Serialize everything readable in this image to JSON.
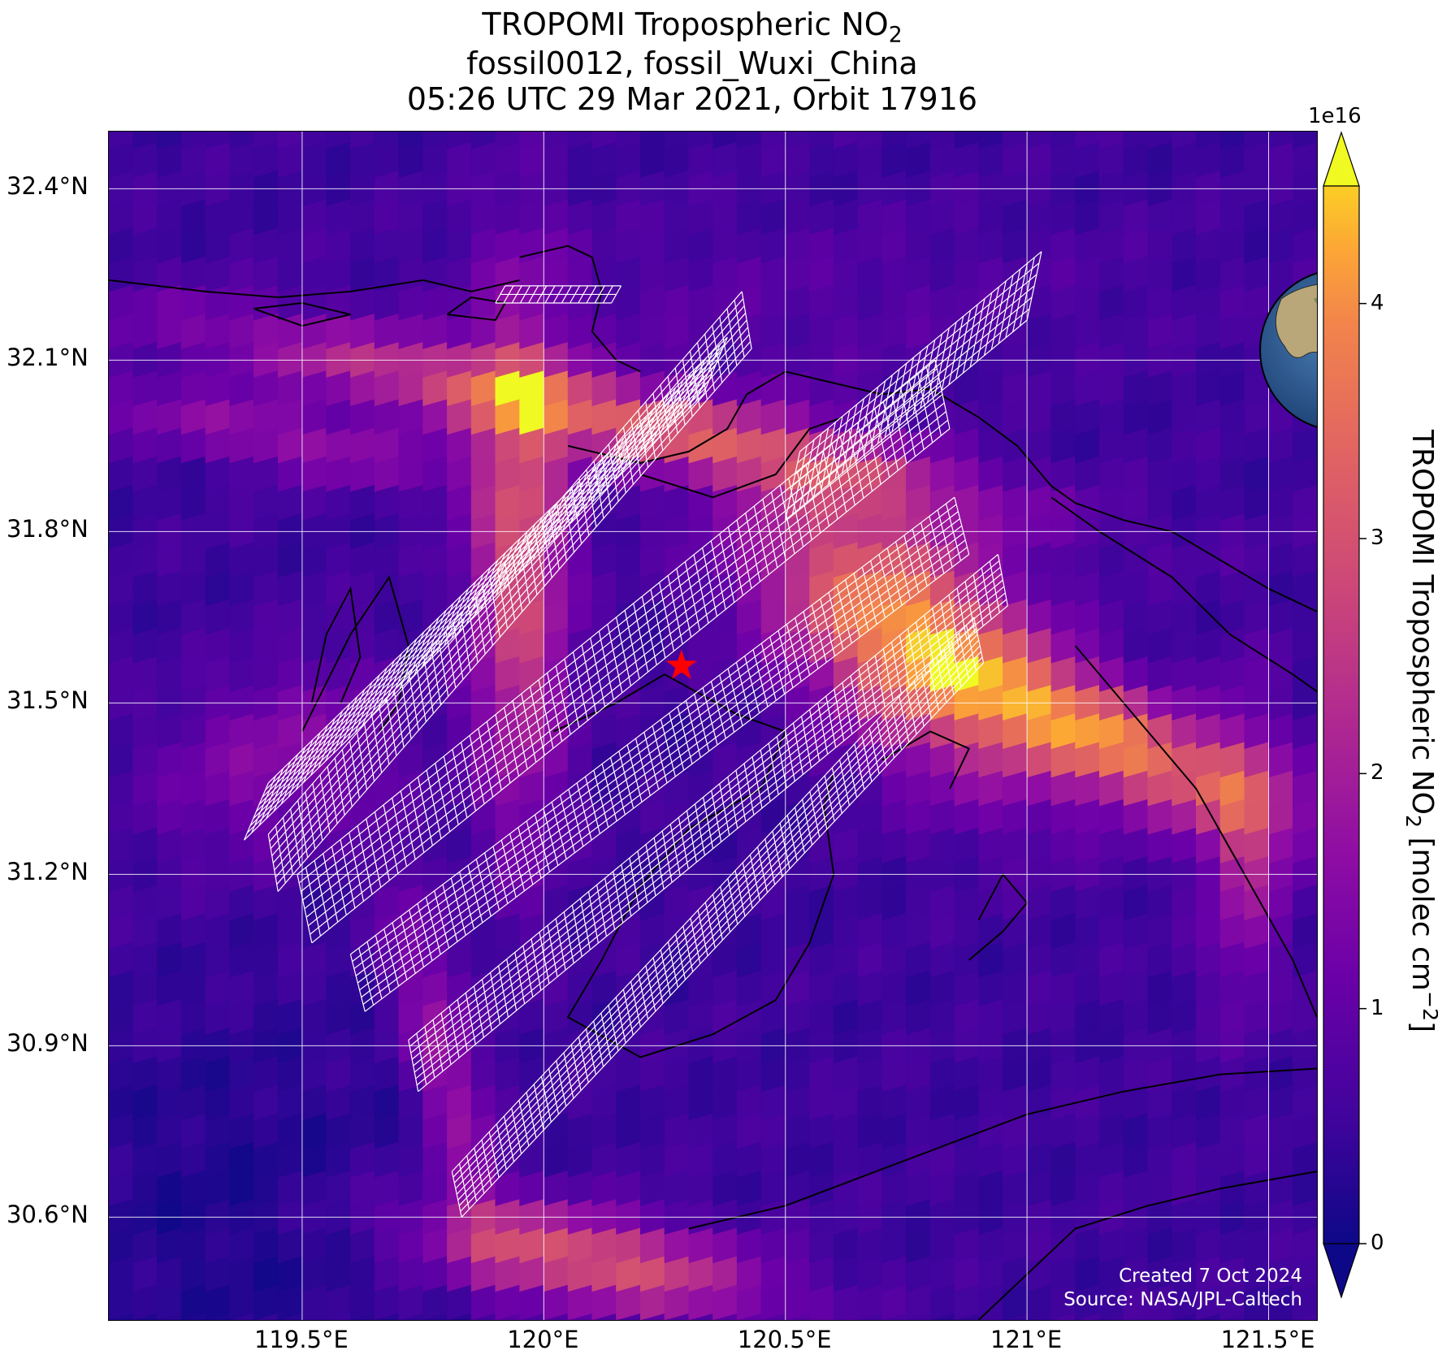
{
  "title": {
    "line1_prefix": "TROPOMI Tropospheric NO",
    "line1_sub": "2",
    "line2": "fossil0012, fossil_Wuxi_China",
    "line3": "05:26 UTC 29 Mar 2021, Orbit 17916"
  },
  "map": {
    "lon_range": [
      119.1,
      121.6
    ],
    "lat_range": [
      30.42,
      32.5
    ],
    "target_marker": {
      "lon": 120.285,
      "lat": 31.565,
      "symbol": "red-star"
    },
    "lat_ticks": [
      {
        "value": 32.4,
        "label": "32.4°N"
      },
      {
        "value": 32.1,
        "label": "32.1°N"
      },
      {
        "value": 31.8,
        "label": "31.8°N"
      },
      {
        "value": 31.5,
        "label": "31.5°N"
      },
      {
        "value": 31.2,
        "label": "31.2°N"
      },
      {
        "value": 30.9,
        "label": "30.9°N"
      },
      {
        "value": 30.6,
        "label": "30.6°N"
      }
    ],
    "lon_ticks": [
      {
        "value": 119.5,
        "label": "119.5°E"
      },
      {
        "value": 120.0,
        "label": "120°E"
      },
      {
        "value": 120.5,
        "label": "120.5°E"
      },
      {
        "value": 121.0,
        "label": "121°E"
      },
      {
        "value": 121.5,
        "label": "121.5°E"
      }
    ],
    "gridlines": true,
    "overlay": "OCO-3 target-mode sounding footprints (white outlines)",
    "inset": "orthographic globe centered on East Asia with red star at target"
  },
  "colorbar": {
    "colormap": "plasma",
    "min": 0,
    "max": 4.5,
    "extend": "both",
    "exponent_label": "1e16",
    "ticks": [
      {
        "value": 0,
        "label": "0"
      },
      {
        "value": 1,
        "label": "1"
      },
      {
        "value": 2,
        "label": "2"
      },
      {
        "value": 3,
        "label": "3"
      },
      {
        "value": 4,
        "label": "4"
      }
    ],
    "label_prefix": "TROPOMI Tropospheric NO",
    "label_sub": "2",
    "label_units_prefix": " [molec cm",
    "label_units_sup": "−2",
    "label_units_suffix": "]"
  },
  "credits": {
    "line1": "Created 7 Oct 2024",
    "line2": "Source: NASA/JPL-Caltech"
  },
  "colors": {
    "star": "#ff0000",
    "grid": "#ffffff",
    "coast": "#000000",
    "footprint": "#ffffff"
  },
  "chart_data": {
    "type": "heatmap",
    "x_axis": "longitude (°E)",
    "y_axis": "latitude (°N)",
    "units": "molec cm^-2 (×1e16)",
    "hotspots": [
      {
        "lon": 120.25,
        "lat": 32.02,
        "value": 4.3
      },
      {
        "lon": 119.9,
        "lat": 31.95,
        "value": 3.8
      },
      {
        "lon": 120.7,
        "lat": 31.7,
        "value": 4.2
      },
      {
        "lon": 120.85,
        "lat": 31.52,
        "value": 4.5
      },
      {
        "lon": 121.3,
        "lat": 31.38,
        "value": 4.4
      },
      {
        "lon": 120.05,
        "lat": 30.5,
        "value": 3.4
      }
    ]
  }
}
